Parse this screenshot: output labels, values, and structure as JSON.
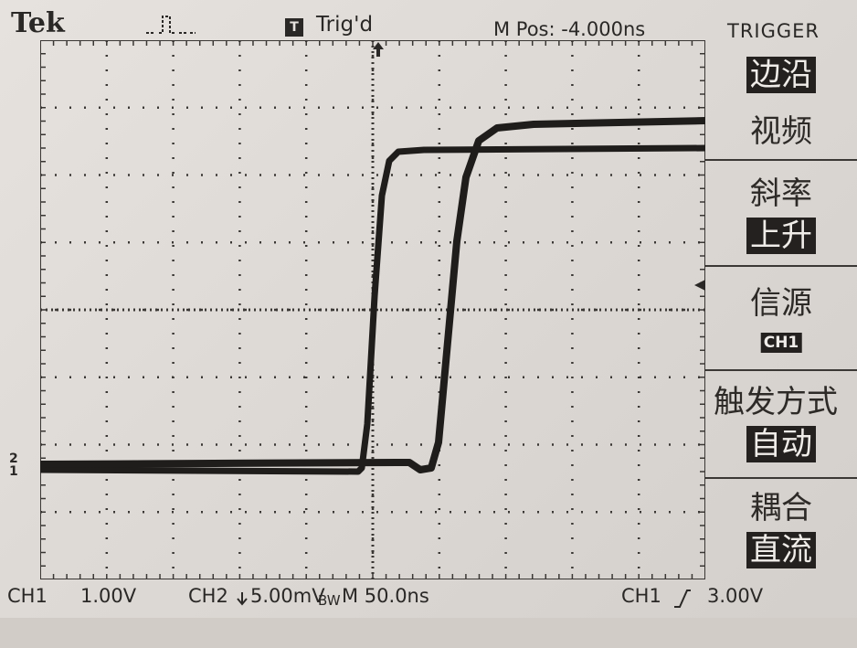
{
  "header": {
    "brand": "Tek",
    "trigger_state": "Trig'd",
    "trigger_state_icon": "T",
    "horizontal_position": "M Pos: -4.000ns",
    "menu_title": "TRIGGER"
  },
  "trigger_menu": {
    "type_option_1": "边沿",
    "type_option_2": "视频",
    "slope_label": "斜率",
    "slope_value": "上升",
    "source_label": "信源",
    "source_value": "CH1",
    "mode_label": "触发方式",
    "mode_value": "自动",
    "coupling_label": "耦合",
    "coupling_value": "直流"
  },
  "status_bar": {
    "ch1_label": "CH1",
    "ch1_scale": "1.00V",
    "ch2_label": "CH2",
    "ch2_scale": "5.00mV",
    "bandwidth_limit": "BW",
    "timebase": "M 50.0ns",
    "trigger_source": "CH1",
    "trigger_level": "3.00V"
  },
  "markers": {
    "ch2_marker": "2",
    "ch1_marker": "1"
  },
  "icons": {
    "acquisition": "pulse-icon",
    "trigger_position": "trigger-position-arrow-icon",
    "trigger_level": "trigger-level-arrow-icon",
    "rising_edge": "rising-edge-icon",
    "ch2_offset": "ch2-offset-arrow-icon"
  },
  "colors": {
    "screen": "#e2deda",
    "trace": "#1f1d1b",
    "grid": "#3a3734",
    "highlight_bg": "#24211f"
  }
}
